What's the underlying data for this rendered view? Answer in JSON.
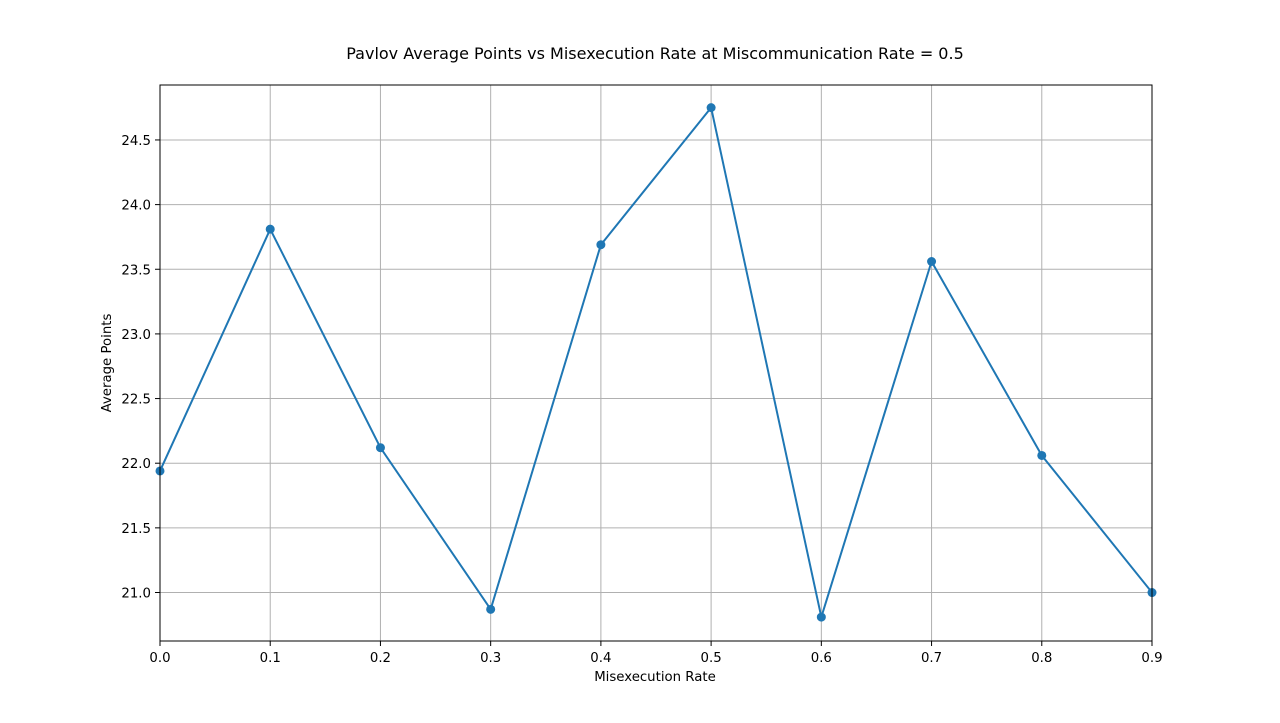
{
  "chart_data": {
    "type": "line",
    "title": "Pavlov Average Points vs Misexecution Rate at Miscommunication Rate = 0.5",
    "xlabel": "Misexecution Rate",
    "ylabel": "Average Points",
    "x": [
      0.0,
      0.1,
      0.2,
      0.3,
      0.4,
      0.5,
      0.6,
      0.7,
      0.8,
      0.9
    ],
    "series": [
      {
        "values": [
          21.94,
          23.81,
          22.12,
          20.87,
          23.69,
          24.75,
          20.81,
          23.56,
          22.06,
          21.0
        ],
        "color": "#1f77b4",
        "marker": "circle"
      }
    ],
    "xlim": [
      0.0,
      0.9
    ],
    "ylim": [
      20.625,
      24.925
    ],
    "x_ticks": [
      "0.0",
      "0.1",
      "0.2",
      "0.3",
      "0.4",
      "0.5",
      "0.6",
      "0.7",
      "0.8",
      "0.9"
    ],
    "y_ticks": [
      "21.0",
      "21.5",
      "22.0",
      "22.5",
      "23.0",
      "23.5",
      "24.0",
      "24.5"
    ],
    "grid": true,
    "legend": "none"
  }
}
